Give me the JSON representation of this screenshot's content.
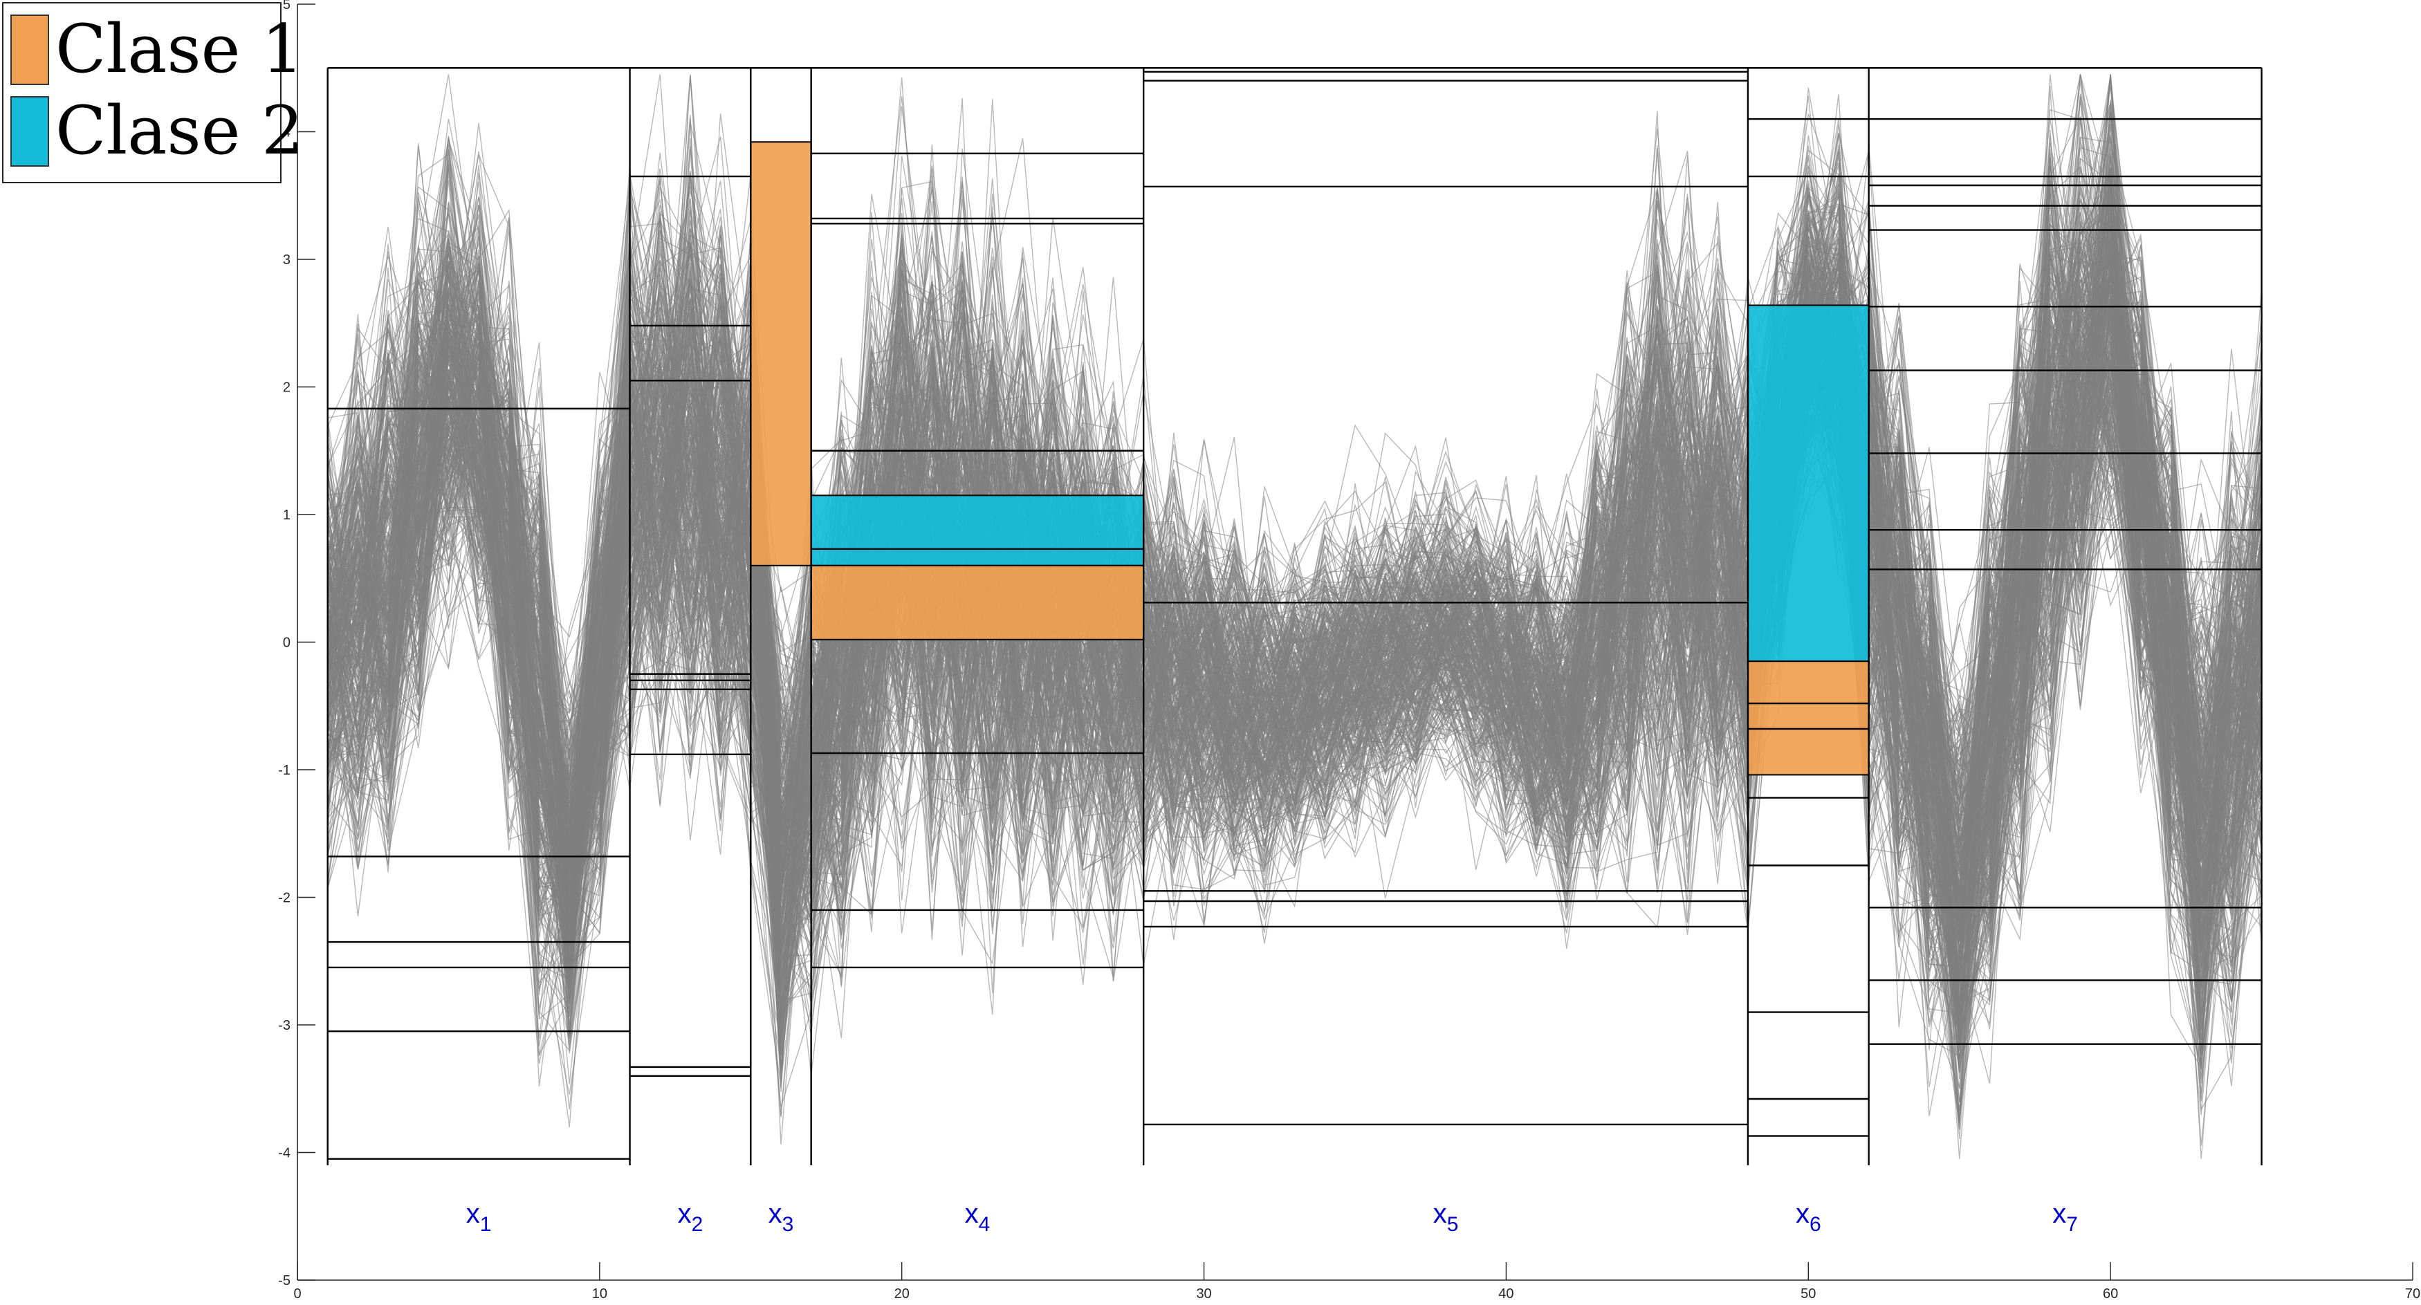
{
  "chart_data": {
    "type": "parallel-coordinates-line",
    "title": "",
    "xlabel": "",
    "ylabel": "",
    "xlim": [
      0,
      70
    ],
    "ylim": [
      -5,
      5
    ],
    "x_ticks": [
      0,
      10,
      20,
      30,
      40,
      50,
      60,
      70
    ],
    "y_ticks": [
      -5,
      -4,
      -3,
      -2,
      -1,
      0,
      1,
      2,
      3,
      4,
      5
    ],
    "x_range": [
      1,
      65
    ],
    "line_color": "#808080",
    "threshold_color": "#000000",
    "legend": {
      "position": "top-left",
      "entries": [
        {
          "label": "Clase 1",
          "color": "#f0a050"
        },
        {
          "label": "Clase 2",
          "color": "#14bcd9"
        }
      ]
    },
    "variables": [
      {
        "name": "x",
        "index": "1",
        "x_start": 1,
        "x_end": 11,
        "thresholds": [
          1.83,
          -1.68,
          -2.35,
          -2.55,
          -3.05,
          -4.05
        ]
      },
      {
        "name": "x",
        "index": "2",
        "x_start": 11,
        "x_end": 15,
        "thresholds": [
          3.65,
          2.48,
          2.05,
          -0.25,
          -0.3,
          -0.37,
          -0.88,
          -3.33,
          -3.4
        ]
      },
      {
        "name": "x",
        "index": "3",
        "x_start": 15,
        "x_end": 17,
        "thresholds": []
      },
      {
        "name": "x",
        "index": "4",
        "x_start": 17,
        "x_end": 28,
        "thresholds": [
          3.83,
          3.32,
          3.28,
          1.5,
          0.73,
          -0.87,
          -2.1,
          -2.55
        ]
      },
      {
        "name": "x",
        "index": "5",
        "x_start": 28,
        "x_end": 48,
        "thresholds": [
          4.47,
          4.4,
          3.57,
          0.31,
          -1.95,
          -2.03,
          -2.23,
          -3.78
        ]
      },
      {
        "name": "x",
        "index": "6",
        "x_start": 48,
        "x_end": 52,
        "thresholds": [
          4.1,
          3.65,
          -0.48,
          -0.68,
          -1.22,
          -1.75,
          -2.9,
          -3.58,
          -3.87
        ]
      },
      {
        "name": "x",
        "index": "7",
        "x_start": 52,
        "x_end": 65,
        "thresholds": [
          4.1,
          3.65,
          3.58,
          3.42,
          3.23,
          2.63,
          2.13,
          1.48,
          0.88,
          0.57,
          -2.08,
          -2.65,
          -3.15
        ]
      }
    ],
    "plot_frame": {
      "y_top": 4.5,
      "y_bottom": -4.1
    },
    "class_regions": [
      {
        "class": "Clase 1",
        "x_start": 15,
        "x_end": 17,
        "y_low": 0.6,
        "y_high": 3.92
      },
      {
        "class": "Clase 2",
        "x_start": 17,
        "x_end": 28,
        "y_low": 0.6,
        "y_high": 1.15
      },
      {
        "class": "Clase 1",
        "x_start": 17,
        "x_end": 28,
        "y_low": 0.02,
        "y_high": 0.6
      },
      {
        "class": "Clase 2",
        "x_start": 48,
        "x_end": 52,
        "y_low": -0.15,
        "y_high": 2.64
      },
      {
        "class": "Clase 1",
        "x_start": 48,
        "x_end": 52,
        "y_low": -1.04,
        "y_high": -0.15
      }
    ],
    "signal_profile": [
      {
        "x": 1,
        "center": 0.0,
        "spread": 0.9
      },
      {
        "x": 3,
        "center": 0.6,
        "spread": 1.3
      },
      {
        "x": 5.5,
        "center": 2.4,
        "spread": 0.9
      },
      {
        "x": 8,
        "center": -0.5,
        "spread": 1.4
      },
      {
        "x": 9,
        "center": -1.8,
        "spread": 0.8
      },
      {
        "x": 11,
        "center": 1.2,
        "spread": 1.3
      },
      {
        "x": 13,
        "center": 1.6,
        "spread": 1.4
      },
      {
        "x": 15,
        "center": 0.8,
        "spread": 1.4
      },
      {
        "x": 16,
        "center": -1.8,
        "spread": 1.1
      },
      {
        "x": 17,
        "center": -0.9,
        "spread": 1.1
      },
      {
        "x": 20,
        "center": 1.0,
        "spread": 1.6
      },
      {
        "x": 23,
        "center": 0.6,
        "spread": 1.6
      },
      {
        "x": 28,
        "center": -0.2,
        "spread": 1.0
      },
      {
        "x": 32,
        "center": -0.6,
        "spread": 0.7
      },
      {
        "x": 38,
        "center": 0.1,
        "spread": 0.5
      },
      {
        "x": 42,
        "center": -0.6,
        "spread": 0.8
      },
      {
        "x": 45,
        "center": 1.0,
        "spread": 1.5
      },
      {
        "x": 48,
        "center": 0.4,
        "spread": 1.3
      },
      {
        "x": 50.5,
        "center": 3.0,
        "spread": 0.5
      },
      {
        "x": 52,
        "center": 1.0,
        "spread": 1.5
      },
      {
        "x": 55,
        "center": -2.0,
        "spread": 1.0
      },
      {
        "x": 58,
        "center": 1.5,
        "spread": 1.6
      },
      {
        "x": 60,
        "center": 2.6,
        "spread": 1.0
      },
      {
        "x": 63,
        "center": -1.5,
        "spread": 1.3
      },
      {
        "x": 65,
        "center": 0.0,
        "spread": 1.2
      }
    ]
  }
}
